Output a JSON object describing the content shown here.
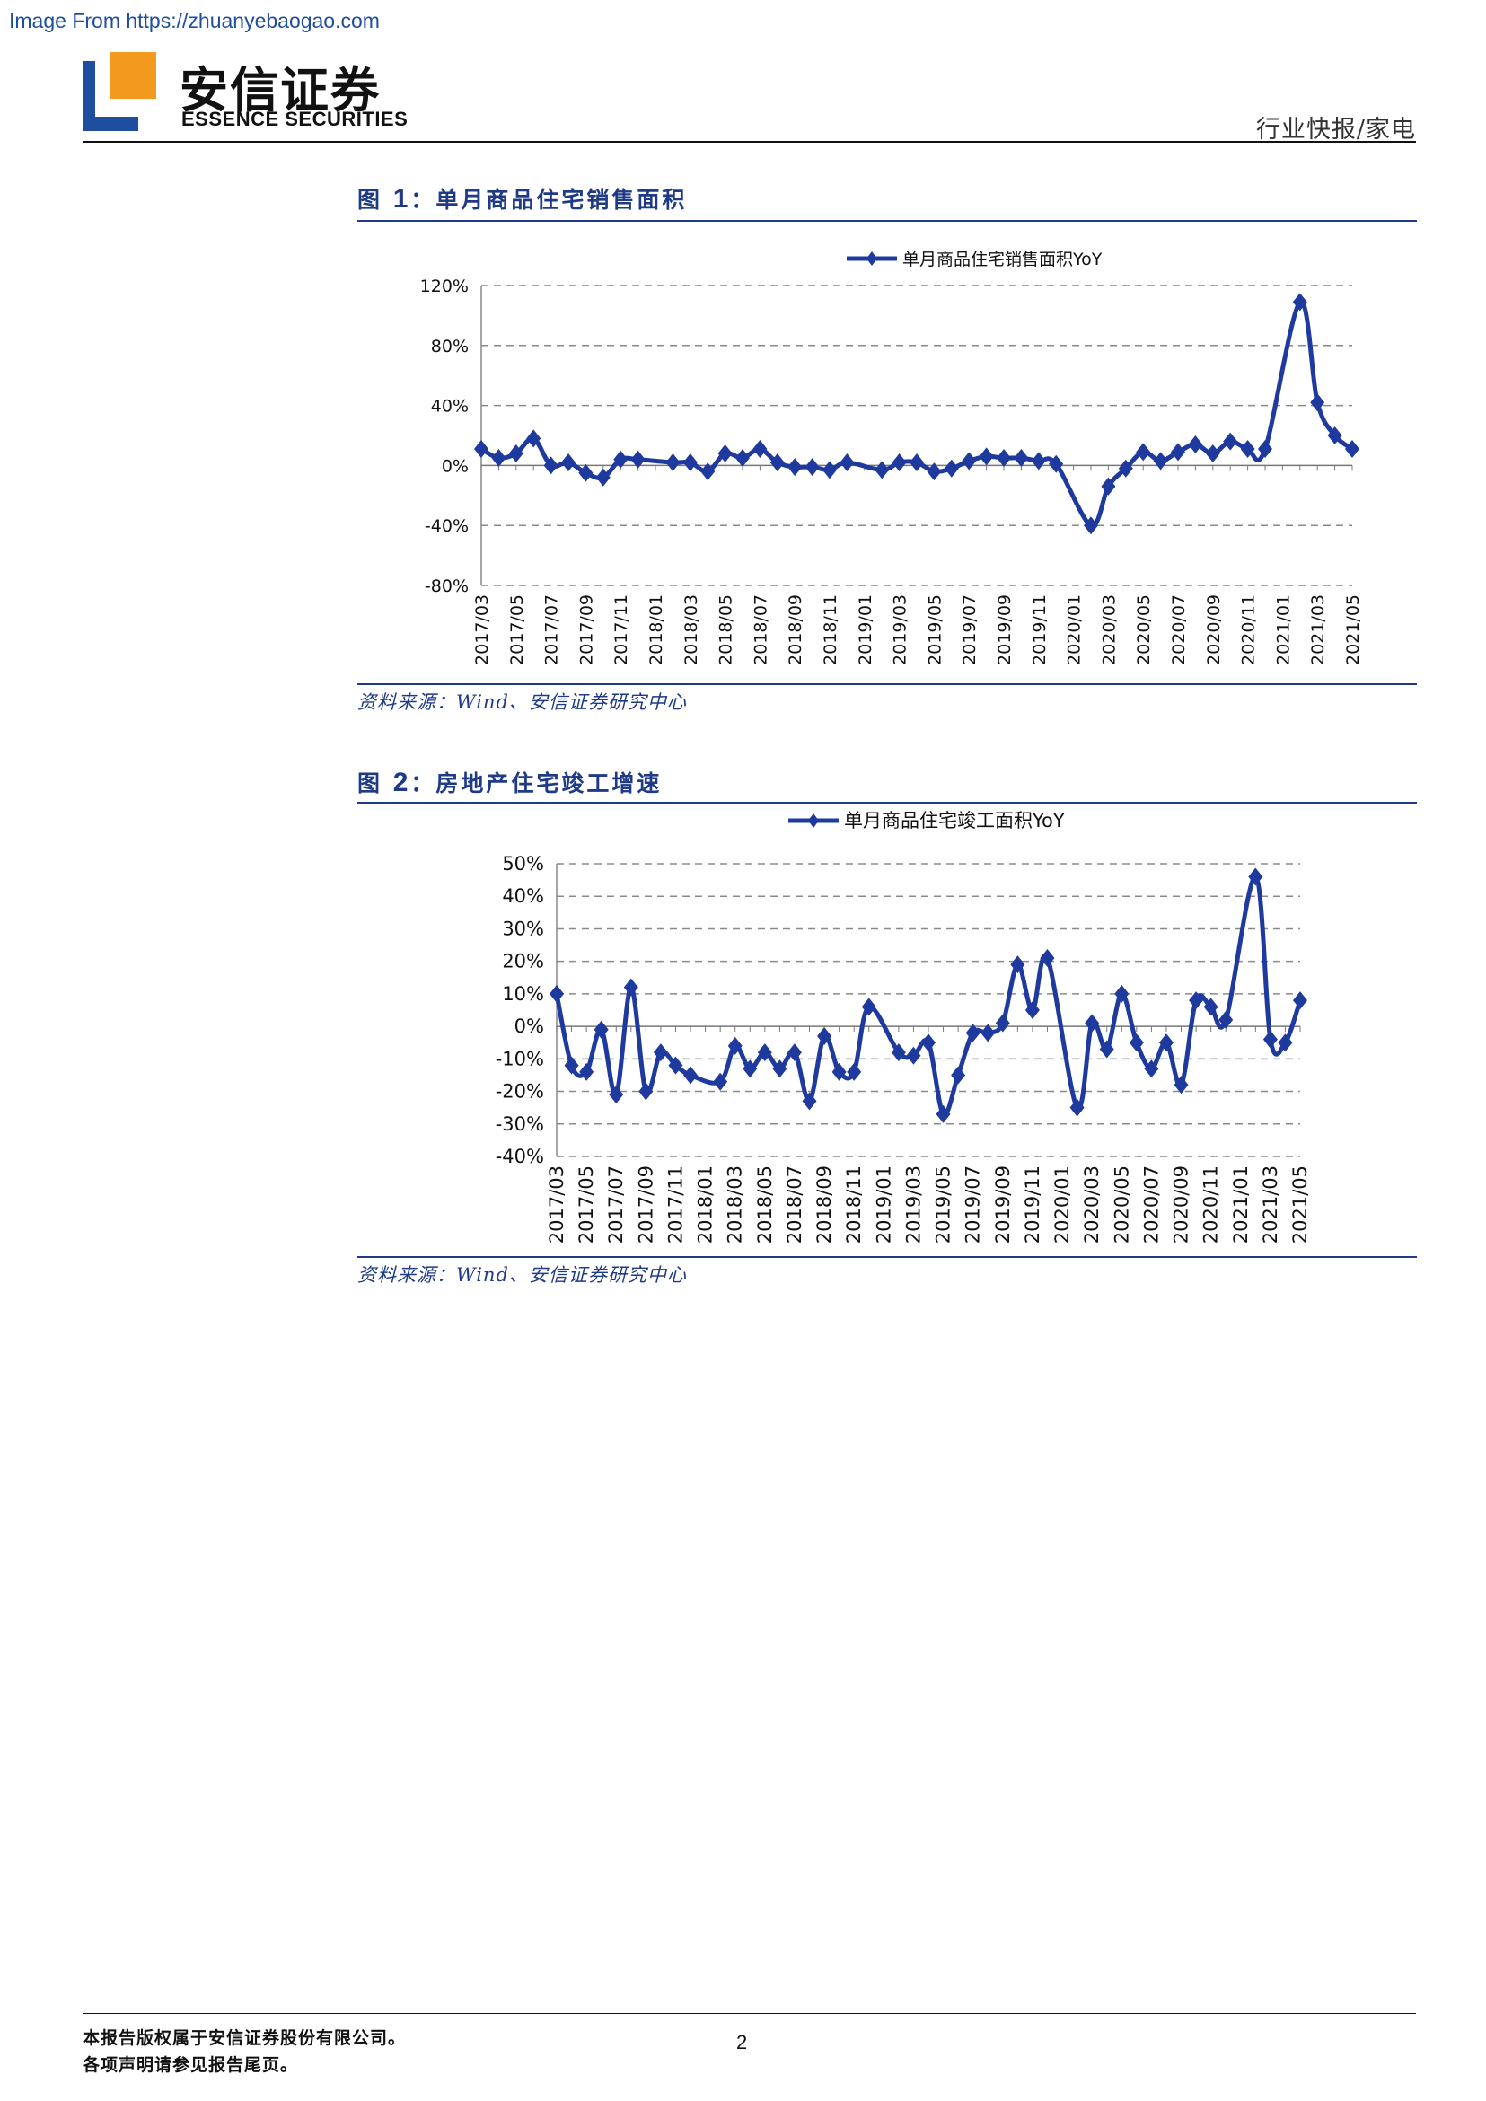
{
  "source_url": "Image From https://zhuanyebaogao.com",
  "brand": {
    "name_cn": "安信证券",
    "name_en": "ESSENCE SECURITIES"
  },
  "header": {
    "category": "行业快报/家电"
  },
  "figures": [
    {
      "label": "图",
      "number": "1",
      "title": "：单月商品住宅销售面积",
      "source": "资料来源：Wind、安信证券研究中心"
    },
    {
      "label": "图",
      "number": "2",
      "title": "：房地产住宅竣工增速",
      "source": "资料来源：Wind、安信证券研究中心"
    }
  ],
  "footer": {
    "line1": "本报告版权属于安信证券股份有限公司。",
    "line2": "各项声明请参见报告尾页。",
    "page_number": "2"
  },
  "colors": {
    "series": "#1f3a9e",
    "grid": "#8a8a8a",
    "accent": "#1f3a86"
  },
  "chart_data": [
    {
      "type": "line",
      "legend_placement": "top",
      "grid": true,
      "ylim": [
        -0.8,
        1.2
      ],
      "yticks": [
        -0.8,
        -0.4,
        0,
        0.4,
        0.8,
        1.2
      ],
      "ytick_labels": [
        "-80%",
        "-40%",
        "0%",
        "40%",
        "80%",
        "120%"
      ],
      "x_labels": [
        "2017/03",
        "2017/05",
        "2017/07",
        "2017/09",
        "2017/11",
        "2018/01",
        "2018/03",
        "2018/05",
        "2018/07",
        "2018/09",
        "2018/11",
        "2019/01",
        "2019/03",
        "2019/05",
        "2019/07",
        "2019/09",
        "2019/11",
        "2020/01",
        "2020/03",
        "2020/05",
        "2020/07",
        "2020/09",
        "2020/11",
        "2021/01",
        "2021/03",
        "2021/05"
      ],
      "series": [
        {
          "name": "单月商品住宅销售面积YoY",
          "points": [
            [
              "2017/03",
              0.11
            ],
            [
              "2017/04",
              0.05
            ],
            [
              "2017/05",
              0.08
            ],
            [
              "2017/06",
              0.18
            ],
            [
              "2017/07",
              0.0
            ],
            [
              "2017/08",
              0.02
            ],
            [
              "2017/09",
              -0.05
            ],
            [
              "2017/10",
              -0.08
            ],
            [
              "2017/11",
              0.04
            ],
            [
              "2017/12",
              0.04
            ],
            [
              "2018/02",
              0.02
            ],
            [
              "2018/03",
              0.02
            ],
            [
              "2018/04",
              -0.04
            ],
            [
              "2018/05",
              0.08
            ],
            [
              "2018/06",
              0.05
            ],
            [
              "2018/07",
              0.11
            ],
            [
              "2018/08",
              0.02
            ],
            [
              "2018/09",
              -0.01
            ],
            [
              "2018/10",
              -0.01
            ],
            [
              "2018/11",
              -0.03
            ],
            [
              "2018/12",
              0.02
            ],
            [
              "2019/02",
              -0.03
            ],
            [
              "2019/03",
              0.02
            ],
            [
              "2019/04",
              0.02
            ],
            [
              "2019/05",
              -0.04
            ],
            [
              "2019/06",
              -0.02
            ],
            [
              "2019/07",
              0.03
            ],
            [
              "2019/08",
              0.06
            ],
            [
              "2019/09",
              0.05
            ],
            [
              "2019/10",
              0.05
            ],
            [
              "2019/11",
              0.03
            ],
            [
              "2019/12",
              0.01
            ],
            [
              "2020/02",
              -0.4
            ],
            [
              "2020/03",
              -0.14
            ],
            [
              "2020/04",
              -0.02
            ],
            [
              "2020/05",
              0.09
            ],
            [
              "2020/06",
              0.03
            ],
            [
              "2020/07",
              0.09
            ],
            [
              "2020/08",
              0.14
            ],
            [
              "2020/09",
              0.08
            ],
            [
              "2020/10",
              0.16
            ],
            [
              "2020/11",
              0.11
            ],
            [
              "2020/12",
              0.11
            ],
            [
              "2021/02",
              1.09
            ],
            [
              "2021/03",
              0.42
            ],
            [
              "2021/04",
              0.2
            ],
            [
              "2021/05",
              0.11
            ]
          ]
        }
      ]
    },
    {
      "type": "line",
      "legend_placement": "top",
      "grid": true,
      "ylim": [
        -0.4,
        0.5
      ],
      "yticks": [
        -0.4,
        -0.3,
        -0.2,
        -0.1,
        0,
        0.1,
        0.2,
        0.3,
        0.4,
        0.5
      ],
      "ytick_labels": [
        "-40%",
        "-30%",
        "-20%",
        "-10%",
        "0%",
        "10%",
        "20%",
        "30%",
        "40%",
        "50%"
      ],
      "x_labels": [
        "2017/03",
        "2017/05",
        "2017/07",
        "2017/09",
        "2017/11",
        "2018/01",
        "2018/03",
        "2018/05",
        "2018/07",
        "2018/09",
        "2018/11",
        "2019/01",
        "2019/03",
        "2019/05",
        "2019/07",
        "2019/09",
        "2019/11",
        "2020/01",
        "2020/03",
        "2020/05",
        "2020/07",
        "2020/09",
        "2020/11",
        "2021/01",
        "2021/03",
        "2021/05"
      ],
      "series": [
        {
          "name": "单月商品住宅竣工面积YoY",
          "points": [
            [
              "2017/03",
              0.1
            ],
            [
              "2017/04",
              -0.12
            ],
            [
              "2017/05",
              -0.14
            ],
            [
              "2017/06",
              -0.01
            ],
            [
              "2017/07",
              -0.21
            ],
            [
              "2017/08",
              0.12
            ],
            [
              "2017/09",
              -0.2
            ],
            [
              "2017/10",
              -0.08
            ],
            [
              "2017/11",
              -0.12
            ],
            [
              "2017/12",
              -0.15
            ],
            [
              "2018/02",
              -0.17
            ],
            [
              "2018/03",
              -0.06
            ],
            [
              "2018/04",
              -0.13
            ],
            [
              "2018/05",
              -0.08
            ],
            [
              "2018/06",
              -0.13
            ],
            [
              "2018/07",
              -0.08
            ],
            [
              "2018/08",
              -0.23
            ],
            [
              "2018/09",
              -0.03
            ],
            [
              "2018/10",
              -0.14
            ],
            [
              "2018/11",
              -0.14
            ],
            [
              "2018/12",
              0.06
            ],
            [
              "2019/02",
              -0.08
            ],
            [
              "2019/03",
              -0.09
            ],
            [
              "2019/04",
              -0.05
            ],
            [
              "2019/05",
              -0.27
            ],
            [
              "2019/06",
              -0.15
            ],
            [
              "2019/07",
              -0.02
            ],
            [
              "2019/08",
              -0.02
            ],
            [
              "2019/09",
              0.01
            ],
            [
              "2019/10",
              0.19
            ],
            [
              "2019/11",
              0.05
            ],
            [
              "2019/12",
              0.21
            ],
            [
              "2020/02",
              -0.25
            ],
            [
              "2020/03",
              0.01
            ],
            [
              "2020/04",
              -0.07
            ],
            [
              "2020/05",
              0.1
            ],
            [
              "2020/06",
              -0.05
            ],
            [
              "2020/07",
              -0.13
            ],
            [
              "2020/08",
              -0.05
            ],
            [
              "2020/09",
              -0.18
            ],
            [
              "2020/10",
              0.08
            ],
            [
              "2020/11",
              0.06
            ],
            [
              "2020/12",
              0.02
            ],
            [
              "2021/02",
              0.46
            ],
            [
              "2021/03",
              -0.04
            ],
            [
              "2021/04",
              -0.05
            ],
            [
              "2021/05",
              0.08
            ]
          ]
        }
      ]
    }
  ]
}
